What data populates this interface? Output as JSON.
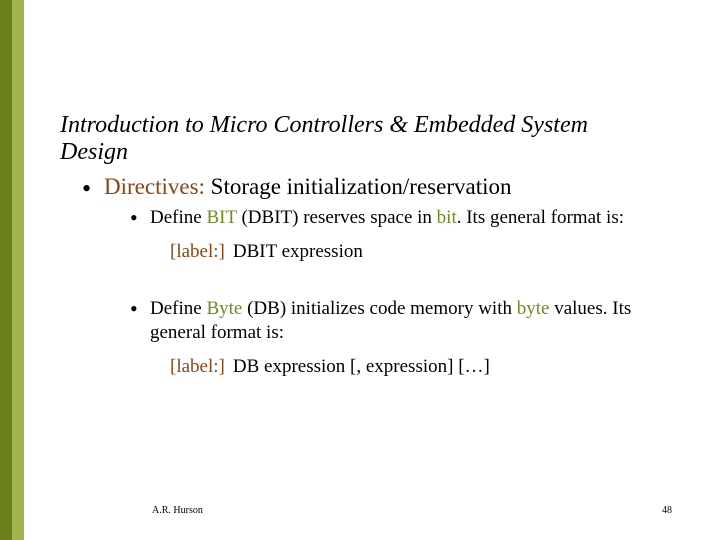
{
  "accent": {
    "dark": "#6b7f1a",
    "light": "#9fb54a"
  },
  "text_colors": {
    "green": "#6b8e23",
    "brown": "#8b4513",
    "black": "#000000"
  },
  "title": "Introduction to Micro Controllers & Embedded System Design",
  "level1_prefix": "Directives:",
  "level1_rest": " Storage initialization/reservation",
  "item1": {
    "pre": "Define ",
    "kw1": "BIT",
    "mid": " (DBIT) reserves space in ",
    "kw2": "bit",
    "post": ".  Its general format is:",
    "syntax_open": "[label:]",
    "syntax_cmd": "DBIT",
    "syntax_rest": "   expression"
  },
  "item2": {
    "pre": "Define ",
    "kw1": "Byte",
    "mid": " (DB) initializes code memory with ",
    "kw2": "byte",
    "post": " values.  Its general format is:",
    "syntax_open": "[label:]",
    "syntax_cmd": "DB",
    "syntax_rest": "   expression [, expression] […]"
  },
  "author": "A.R. Hurson",
  "pagenum": "48"
}
